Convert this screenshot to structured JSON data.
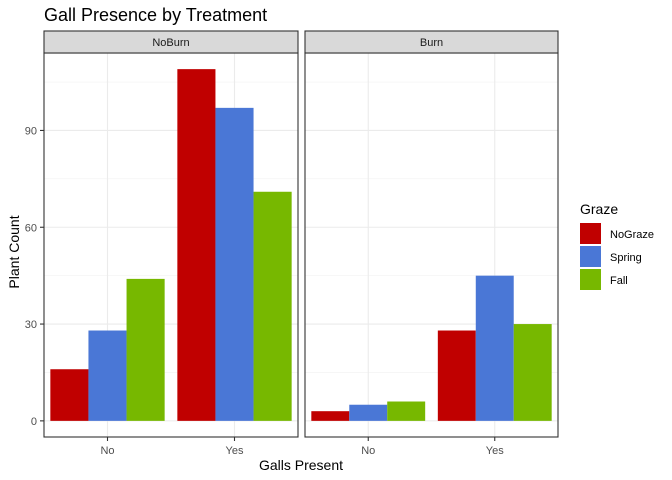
{
  "chart_data": {
    "type": "bar",
    "title": "Gall Presence by Treatment",
    "xlabel": "Galls Present",
    "ylabel": "Plant Count",
    "categories": [
      "No",
      "Yes"
    ],
    "ylim": [
      -5,
      114
    ],
    "yticks": [
      0,
      30,
      60,
      90
    ],
    "grid": true,
    "legend": {
      "title": "Graze",
      "position": "right"
    },
    "facets": [
      {
        "name": "NoBurn",
        "series": [
          {
            "name": "NoGraze",
            "values": [
              16,
              109
            ]
          },
          {
            "name": "Spring",
            "values": [
              28,
              97
            ]
          },
          {
            "name": "Fall",
            "values": [
              44,
              71
            ]
          }
        ]
      },
      {
        "name": "Burn",
        "series": [
          {
            "name": "NoGraze",
            "values": [
              3,
              28
            ]
          },
          {
            "name": "Spring",
            "values": [
              5,
              45
            ]
          },
          {
            "name": "Fall",
            "values": [
              6,
              30
            ]
          }
        ]
      }
    ],
    "colors": {
      "NoGraze": "#C00000",
      "Spring": "#4A77D6",
      "Fall": "#77B800"
    }
  }
}
